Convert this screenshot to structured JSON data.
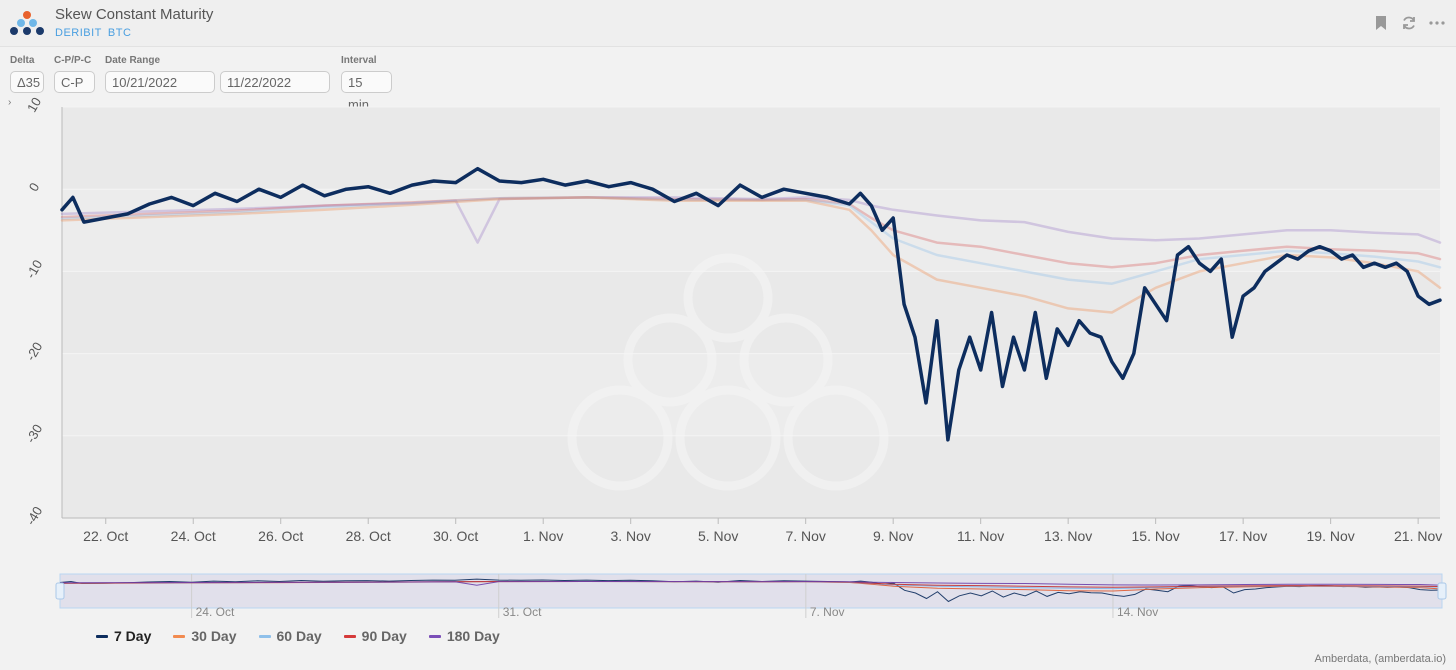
{
  "header": {
    "title": "Skew Constant Maturity",
    "exchange": "DERIBIT",
    "asset": "BTC"
  },
  "controls": {
    "delta_label": "Delta",
    "delta_value": "Δ35",
    "cp_label": "C-P/P-C",
    "cp_value": "C-P",
    "date_range_label": "Date Range",
    "date_start": "10/21/2022",
    "date_end": "11/22/2022",
    "interval_label": "Interval",
    "interval_value": "15 min"
  },
  "legend": [
    {
      "label": "7 Day",
      "color": "#0d2d5e"
    },
    {
      "label": "30 Day",
      "color": "#f28b50"
    },
    {
      "label": "60 Day",
      "color": "#8fc0ea"
    },
    {
      "label": "90 Day",
      "color": "#d53a3a"
    },
    {
      "label": "180 Day",
      "color": "#7b4fb8"
    }
  ],
  "credit": "Amberdata, (amberdata.io)",
  "chart_data": {
    "type": "line",
    "x_ticks": [
      "22. Oct",
      "24. Oct",
      "26. Oct",
      "28. Oct",
      "30. Oct",
      "1. Nov",
      "3. Nov",
      "5. Nov",
      "7. Nov",
      "9. Nov",
      "11. Nov",
      "13. Nov",
      "15. Nov",
      "17. Nov",
      "19. Nov",
      "21. Nov"
    ],
    "y_ticks": [
      10,
      0,
      -10,
      -20,
      -30,
      -40
    ],
    "ylim": [
      -40,
      10
    ],
    "xlim": [
      "2022-10-21",
      "2022-11-21T12:00"
    ],
    "grid": true,
    "navigator_ticks": [
      "24. Oct",
      "31. Oct",
      "7. Nov",
      "14. Nov"
    ],
    "series": [
      {
        "name": "180 Day",
        "color": "#7b4fb8",
        "opacity": 0.25,
        "width": 2.5,
        "x": [
          "2022-10-21",
          "2022-10-23",
          "2022-10-25",
          "2022-10-27",
          "2022-10-29",
          "2022-10-30",
          "2022-10-30T12:00",
          "2022-10-31",
          "2022-11-02",
          "2022-11-04",
          "2022-11-06",
          "2022-11-07",
          "2022-11-08",
          "2022-11-08T12:00",
          "2022-11-09",
          "2022-11-10",
          "2022-11-11",
          "2022-11-12",
          "2022-11-13",
          "2022-11-14",
          "2022-11-15",
          "2022-11-16",
          "2022-11-17",
          "2022-11-18",
          "2022-11-19",
          "2022-11-20",
          "2022-11-21",
          "2022-11-21T12:00"
        ],
        "y": [
          -3.0,
          -2.7,
          -2.4,
          -2.0,
          -1.7,
          -1.4,
          -6.5,
          -1.2,
          -1.0,
          -1.0,
          -1.2,
          -1.0,
          -1.3,
          -2.0,
          -2.5,
          -3.2,
          -3.8,
          -4.0,
          -5.2,
          -6.0,
          -6.2,
          -6.0,
          -5.5,
          -5.0,
          -5.0,
          -5.3,
          -5.5,
          -6.5
        ]
      },
      {
        "name": "90 Day",
        "color": "#d53a3a",
        "opacity": 0.28,
        "width": 2.5,
        "x": [
          "2022-10-21",
          "2022-10-23",
          "2022-10-25",
          "2022-10-27",
          "2022-10-29",
          "2022-10-31",
          "2022-11-02",
          "2022-11-04",
          "2022-11-06",
          "2022-11-07",
          "2022-11-08",
          "2022-11-08T12:00",
          "2022-11-09",
          "2022-11-10",
          "2022-11-11",
          "2022-11-12",
          "2022-11-13",
          "2022-11-14",
          "2022-11-15",
          "2022-11-16",
          "2022-11-17",
          "2022-11-18",
          "2022-11-19",
          "2022-11-20",
          "2022-11-21",
          "2022-11-21T12:00"
        ],
        "y": [
          -3.4,
          -3.0,
          -2.6,
          -2.0,
          -1.6,
          -1.1,
          -1.0,
          -1.2,
          -1.3,
          -1.2,
          -1.8,
          -3.5,
          -5.0,
          -6.5,
          -7.0,
          -8.0,
          -9.0,
          -9.5,
          -9.0,
          -8.0,
          -7.5,
          -7.0,
          -7.3,
          -7.5,
          -7.8,
          -8.5
        ]
      },
      {
        "name": "60 Day",
        "color": "#8fc0ea",
        "opacity": 0.35,
        "width": 2.5,
        "x": [
          "2022-10-21",
          "2022-10-23",
          "2022-10-25",
          "2022-10-27",
          "2022-10-29",
          "2022-10-31",
          "2022-11-02",
          "2022-11-04",
          "2022-11-06",
          "2022-11-07",
          "2022-11-08",
          "2022-11-08T12:00",
          "2022-11-09",
          "2022-11-10",
          "2022-11-11",
          "2022-11-12",
          "2022-11-13",
          "2022-11-14",
          "2022-11-15",
          "2022-11-16",
          "2022-11-17",
          "2022-11-18",
          "2022-11-19",
          "2022-11-20",
          "2022-11-21",
          "2022-11-21T12:00"
        ],
        "y": [
          -3.6,
          -3.2,
          -2.8,
          -2.2,
          -1.7,
          -1.1,
          -1.0,
          -1.3,
          -1.3,
          -1.3,
          -2.0,
          -4.0,
          -6.0,
          -8.0,
          -9.0,
          -10.0,
          -11.0,
          -11.5,
          -10.0,
          -8.5,
          -8.0,
          -7.5,
          -7.8,
          -8.2,
          -8.8,
          -9.5
        ]
      },
      {
        "name": "30 Day",
        "color": "#f28b50",
        "opacity": 0.35,
        "width": 2.5,
        "x": [
          "2022-10-21",
          "2022-10-23",
          "2022-10-25",
          "2022-10-27",
          "2022-10-29",
          "2022-10-31",
          "2022-11-02",
          "2022-11-04",
          "2022-11-06",
          "2022-11-07",
          "2022-11-08",
          "2022-11-08T12:00",
          "2022-11-09",
          "2022-11-10",
          "2022-11-11",
          "2022-11-12",
          "2022-11-13",
          "2022-11-14",
          "2022-11-15",
          "2022-11-16",
          "2022-11-17",
          "2022-11-18",
          "2022-11-19",
          "2022-11-20",
          "2022-11-21",
          "2022-11-21T12:00"
        ],
        "y": [
          -3.8,
          -3.4,
          -3.0,
          -2.5,
          -1.9,
          -1.2,
          -1.0,
          -1.4,
          -1.4,
          -1.4,
          -2.5,
          -5.0,
          -8.0,
          -11.0,
          -12.0,
          -13.0,
          -14.5,
          -15.0,
          -12.0,
          -10.0,
          -9.0,
          -8.0,
          -8.3,
          -9.0,
          -10.0,
          -12.0
        ]
      },
      {
        "name": "7 Day",
        "color": "#0d2d5e",
        "opacity": 1,
        "width": 3.5,
        "x": [
          "2022-10-21",
          "2022-10-21T06:00",
          "2022-10-21T12:00",
          "2022-10-22",
          "2022-10-22T12:00",
          "2022-10-23",
          "2022-10-23T12:00",
          "2022-10-24",
          "2022-10-24T12:00",
          "2022-10-25",
          "2022-10-25T12:00",
          "2022-10-26",
          "2022-10-26T12:00",
          "2022-10-27",
          "2022-10-27T12:00",
          "2022-10-28",
          "2022-10-28T12:00",
          "2022-10-29",
          "2022-10-29T12:00",
          "2022-10-30",
          "2022-10-30T12:00",
          "2022-10-31",
          "2022-10-31T12:00",
          "2022-11-01",
          "2022-11-01T12:00",
          "2022-11-02",
          "2022-11-02T12:00",
          "2022-11-03",
          "2022-11-03T12:00",
          "2022-11-04",
          "2022-11-04T12:00",
          "2022-11-05",
          "2022-11-05T12:00",
          "2022-11-06",
          "2022-11-06T12:00",
          "2022-11-07",
          "2022-11-07T12:00",
          "2022-11-08",
          "2022-11-08T06:00",
          "2022-11-08T12:00",
          "2022-11-08T18:00",
          "2022-11-09",
          "2022-11-09T06:00",
          "2022-11-09T12:00",
          "2022-11-09T18:00",
          "2022-11-10",
          "2022-11-10T06:00",
          "2022-11-10T12:00",
          "2022-11-10T18:00",
          "2022-11-11",
          "2022-11-11T06:00",
          "2022-11-11T12:00",
          "2022-11-11T18:00",
          "2022-11-12",
          "2022-11-12T06:00",
          "2022-11-12T12:00",
          "2022-11-12T18:00",
          "2022-11-13",
          "2022-11-13T06:00",
          "2022-11-13T12:00",
          "2022-11-13T18:00",
          "2022-11-14",
          "2022-11-14T06:00",
          "2022-11-14T12:00",
          "2022-11-14T18:00",
          "2022-11-15",
          "2022-11-15T06:00",
          "2022-11-15T12:00",
          "2022-11-15T18:00",
          "2022-11-16",
          "2022-11-16T06:00",
          "2022-11-16T12:00",
          "2022-11-16T18:00",
          "2022-11-17",
          "2022-11-17T06:00",
          "2022-11-17T12:00",
          "2022-11-17T18:00",
          "2022-11-18",
          "2022-11-18T06:00",
          "2022-11-18T12:00",
          "2022-11-18T18:00",
          "2022-11-19",
          "2022-11-19T06:00",
          "2022-11-19T12:00",
          "2022-11-19T18:00",
          "2022-11-20",
          "2022-11-20T06:00",
          "2022-11-20T12:00",
          "2022-11-20T18:00",
          "2022-11-21",
          "2022-11-21T06:00",
          "2022-11-21T12:00"
        ],
        "y": [
          -2.5,
          -1.0,
          -4.0,
          -3.5,
          -3.0,
          -1.8,
          -1.0,
          -2.0,
          -0.5,
          -1.5,
          0.0,
          -1.0,
          0.5,
          -0.8,
          0.0,
          0.3,
          -0.5,
          0.5,
          1.0,
          0.8,
          2.5,
          1.0,
          0.8,
          1.2,
          0.5,
          1.0,
          0.3,
          0.8,
          0.0,
          -1.5,
          -0.5,
          -2.0,
          0.5,
          -1.0,
          0.0,
          -0.5,
          -1.0,
          -1.8,
          -0.5,
          -2.0,
          -5.0,
          -3.5,
          -14.0,
          -18.0,
          -26.0,
          -16.0,
          -30.5,
          -22.0,
          -18.0,
          -22.0,
          -15.0,
          -24.0,
          -18.0,
          -22.0,
          -15.0,
          -23.0,
          -17.0,
          -19.0,
          -16.0,
          -17.5,
          -18.0,
          -21.0,
          -23.0,
          -20.0,
          -12.0,
          -14.0,
          -16.0,
          -8.0,
          -7.0,
          -9.0,
          -10.0,
          -8.5,
          -18.0,
          -13.0,
          -12.0,
          -10.0,
          -9.0,
          -8.0,
          -8.5,
          -7.5,
          -7.0,
          -7.5,
          -8.5,
          -8.0,
          -9.5,
          -9.0,
          -9.5,
          -9.0,
          -10.0,
          -13.0,
          -14.0,
          -13.5
        ]
      }
    ]
  }
}
